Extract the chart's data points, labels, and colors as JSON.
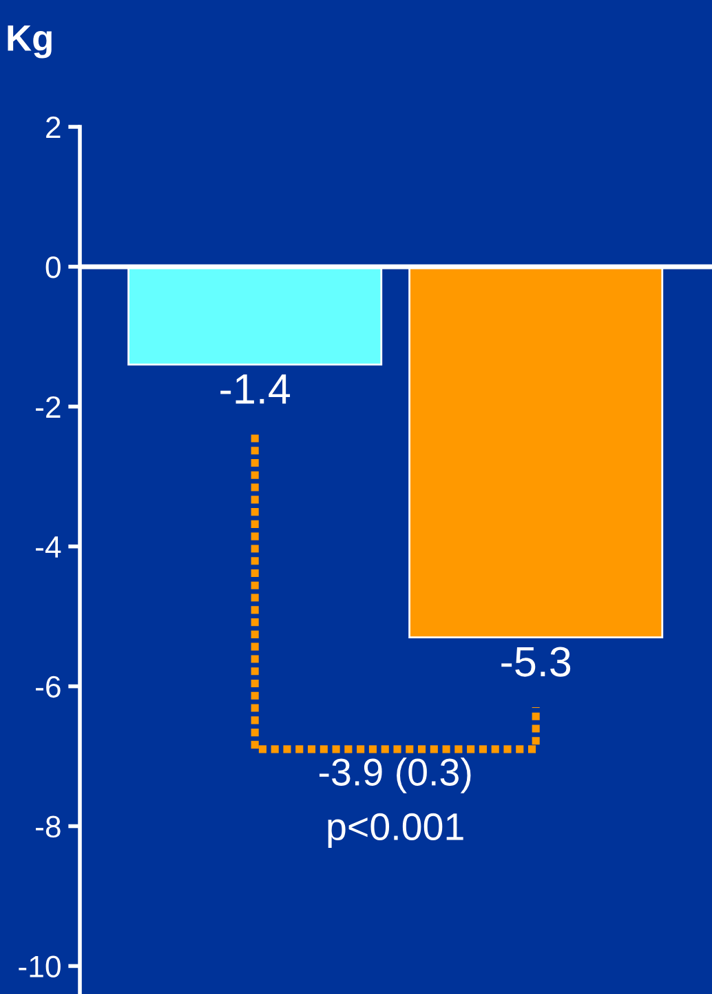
{
  "chart_data": {
    "type": "bar",
    "ylabel": "Kg",
    "categories": [
      null,
      null
    ],
    "values": [
      -1.4,
      -5.3
    ],
    "colors": [
      "#66ffff",
      "#ff9900"
    ],
    "data_labels": true,
    "ylim": [
      -10.4,
      2
    ],
    "yticks": [
      2,
      0,
      -2,
      -4,
      -6,
      -8,
      -10
    ],
    "annotations": [
      "-3.9 (0.3)",
      "p<0.001"
    ],
    "ref_lines": [
      {
        "axis": "y",
        "value": 0,
        "color": "#ffffff"
      }
    ],
    "legend": false
  }
}
